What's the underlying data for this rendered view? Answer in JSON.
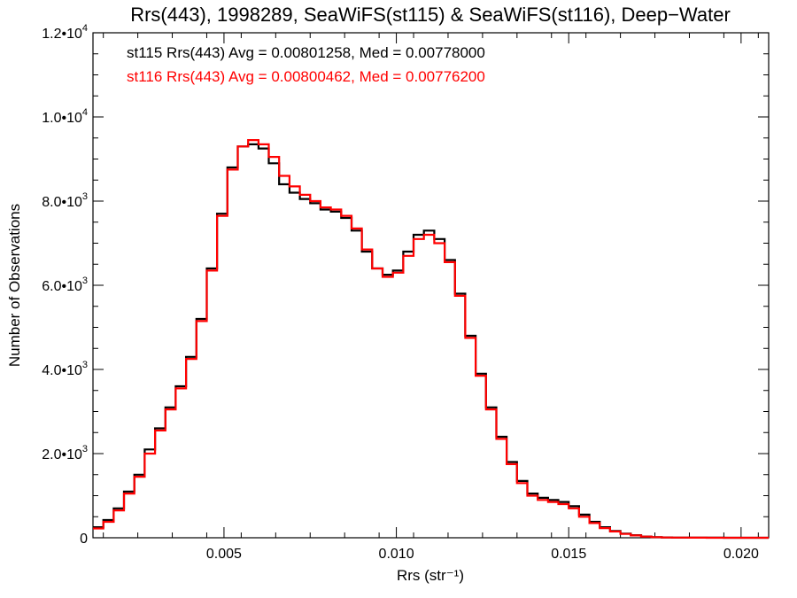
{
  "chart_data": {
    "type": "line",
    "style": "step-histogram",
    "title": "Rrs(443), 1998289, SeaWiFS(st115) & SeaWiFS(st116), Deep−Water",
    "xlabel": "Rrs (str⁻¹)",
    "ylabel": "Number of Observations",
    "xlim": [
      0.0012,
      0.0208
    ],
    "ylim": [
      0,
      12000
    ],
    "grid": false,
    "x_ticks": [
      {
        "value": 0.005,
        "label": "0.005"
      },
      {
        "value": 0.01,
        "label": "0.010"
      },
      {
        "value": 0.015,
        "label": "0.015"
      },
      {
        "value": 0.02,
        "label": "0.020"
      }
    ],
    "y_ticks": [
      {
        "value": 0,
        "mant": "0",
        "exp": ""
      },
      {
        "value": 2000,
        "mant": "2.0•10",
        "exp": "3"
      },
      {
        "value": 4000,
        "mant": "4.0•10",
        "exp": "3"
      },
      {
        "value": 6000,
        "mant": "6.0•10",
        "exp": "3"
      },
      {
        "value": 8000,
        "mant": "8.0•10",
        "exp": "3"
      },
      {
        "value": 10000,
        "mant": "1.0•10",
        "exp": "4"
      },
      {
        "value": 12000,
        "mant": "1.2•10",
        "exp": "4"
      }
    ],
    "annotations": [
      {
        "text": "st115 Rrs(443) Avg = 0.00801258, Med = 0.00778000",
        "color": "#000000"
      },
      {
        "text": "st116 Rrs(443) Avg = 0.00800462, Med = 0.00776200",
        "color": "#ff0000"
      }
    ],
    "series": [
      {
        "color": "#000000",
        "x": [
          0.0012,
          0.0015,
          0.0018,
          0.0021,
          0.0024,
          0.0027,
          0.003,
          0.0033,
          0.0036,
          0.0039,
          0.0042,
          0.0045,
          0.0048,
          0.0051,
          0.0054,
          0.0057,
          0.006,
          0.0063,
          0.0066,
          0.0069,
          0.0072,
          0.0075,
          0.0078,
          0.0081,
          0.0084,
          0.0087,
          0.009,
          0.0093,
          0.0096,
          0.0099,
          0.0102,
          0.0105,
          0.0108,
          0.0111,
          0.0114,
          0.0117,
          0.012,
          0.0123,
          0.0126,
          0.0129,
          0.0132,
          0.0135,
          0.0138,
          0.0141,
          0.0144,
          0.0147,
          0.015,
          0.0153,
          0.0156,
          0.0159,
          0.0162,
          0.0165,
          0.0168,
          0.0171,
          0.0174,
          0.0177,
          0.018,
          0.0185,
          0.019,
          0.0195,
          0.02,
          0.0208
        ],
        "values": [
          250,
          420,
          700,
          1100,
          1500,
          2100,
          2600,
          3100,
          3600,
          4300,
          5200,
          6400,
          7700,
          8800,
          9300,
          9350,
          9250,
          8900,
          8400,
          8200,
          8050,
          7950,
          7800,
          7750,
          7600,
          7300,
          6800,
          6400,
          6250,
          6350,
          6800,
          7200,
          7300,
          7100,
          6600,
          5800,
          4800,
          3900,
          3100,
          2400,
          1800,
          1350,
          1050,
          950,
          900,
          850,
          750,
          550,
          380,
          250,
          160,
          100,
          60,
          30,
          15,
          8,
          5,
          3,
          2,
          1,
          0,
          0
        ]
      },
      {
        "color": "#ff0000",
        "x": [
          0.0012,
          0.0015,
          0.0018,
          0.0021,
          0.0024,
          0.0027,
          0.003,
          0.0033,
          0.0036,
          0.0039,
          0.0042,
          0.0045,
          0.0048,
          0.0051,
          0.0054,
          0.0057,
          0.006,
          0.0063,
          0.0066,
          0.0069,
          0.0072,
          0.0075,
          0.0078,
          0.0081,
          0.0084,
          0.0087,
          0.009,
          0.0093,
          0.0096,
          0.0099,
          0.0102,
          0.0105,
          0.0108,
          0.0111,
          0.0114,
          0.0117,
          0.012,
          0.0123,
          0.0126,
          0.0129,
          0.0132,
          0.0135,
          0.0138,
          0.0141,
          0.0144,
          0.0147,
          0.015,
          0.0153,
          0.0156,
          0.0159,
          0.0162,
          0.0165,
          0.0168,
          0.0171,
          0.0174,
          0.0177,
          0.018,
          0.0185,
          0.019,
          0.0195,
          0.02,
          0.0208
        ],
        "values": [
          220,
          380,
          650,
          1050,
          1450,
          2000,
          2550,
          3050,
          3550,
          4250,
          5150,
          6350,
          7650,
          8750,
          9300,
          9450,
          9350,
          9050,
          8600,
          8350,
          8150,
          8000,
          7850,
          7800,
          7650,
          7350,
          6850,
          6400,
          6200,
          6300,
          6700,
          7100,
          7200,
          7000,
          6550,
          5750,
          4750,
          3850,
          3050,
          2350,
          1750,
          1300,
          1000,
          900,
          850,
          800,
          700,
          500,
          350,
          230,
          150,
          90,
          55,
          28,
          14,
          7,
          4,
          2,
          1,
          1,
          0,
          0
        ]
      }
    ]
  }
}
